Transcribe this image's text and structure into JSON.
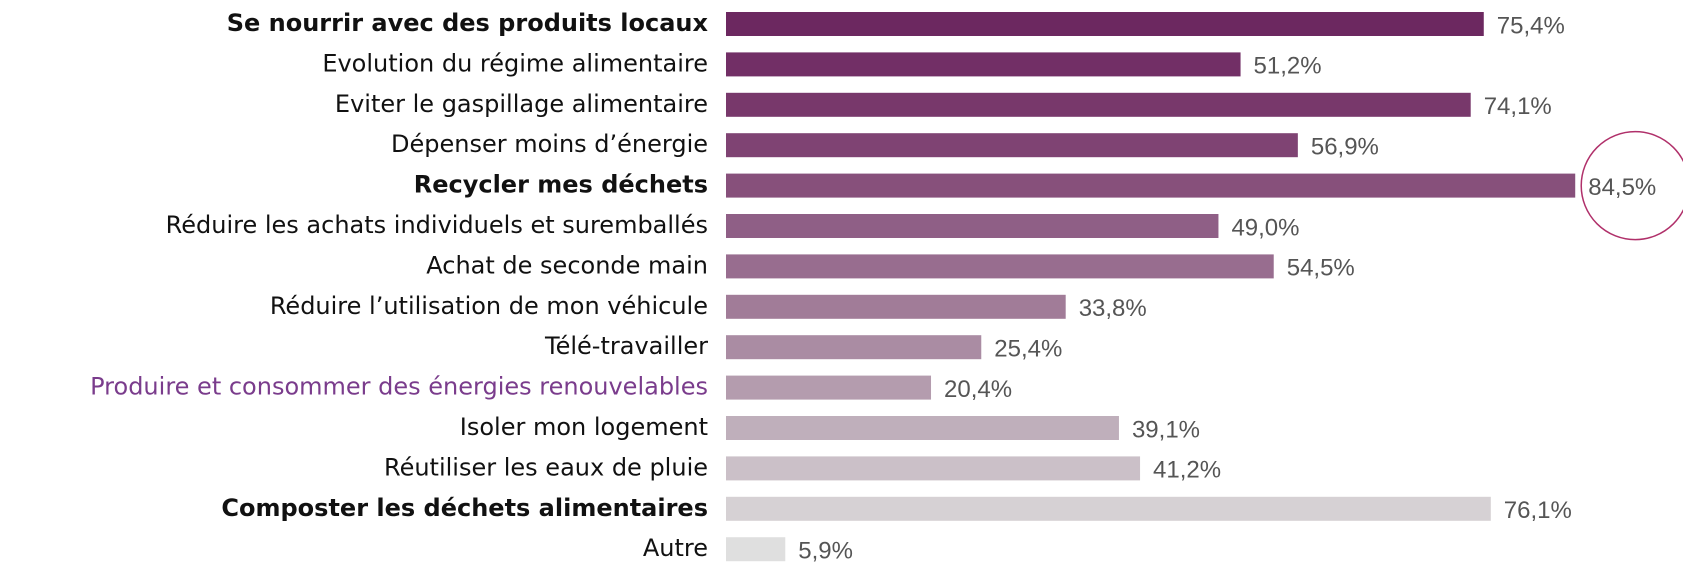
{
  "chart_data": {
    "type": "bar",
    "orientation": "horizontal",
    "categories": [
      "Se nourrir avec des produits locaux",
      "Evolution du régime alimentaire",
      "Eviter le gaspillage alimentaire",
      "Dépenser moins d’énergie",
      "Recycler mes déchets",
      "Réduire les achats individuels et suremballés",
      "Achat de seconde main",
      "Réduire l’utilisation de mon véhicule",
      "Télé-travailler",
      "Produire et consommer des énergies renouvelables",
      "Isoler mon logement",
      "Réutiliser les eaux de pluie",
      "Composter les déchets alimentaires",
      "Autre"
    ],
    "values": [
      75.4,
      51.2,
      74.1,
      56.9,
      84.5,
      49.0,
      54.5,
      33.8,
      25.4,
      20.4,
      39.1,
      41.2,
      76.1,
      5.9
    ],
    "value_labels": [
      "75,4%",
      "51,2%",
      "74,1%",
      "56,9%",
      "84,5%",
      "49,0%",
      "54,5%",
      "33,8%",
      "25,4%",
      "20,4%",
      "39,1%",
      "41,2%",
      "76,1%",
      "5,9%"
    ],
    "colors": [
      "#6c2860",
      "#722f66",
      "#78386b",
      "#7f4373",
      "#87507b",
      "#8f5f86",
      "#986d8f",
      "#a17c98",
      "#aa8ca3",
      "#b49cae",
      "#bfafbb",
      "#cbc0c8",
      "#d6d1d4",
      "#dfdfdf"
    ],
    "label_weights": [
      "bold",
      "normal",
      "normal",
      "normal",
      "bold",
      "normal",
      "normal",
      "normal",
      "normal",
      "normal",
      "normal",
      "normal",
      "bold",
      "normal"
    ],
    "label_colors": [
      "#111111",
      "#111111",
      "#111111",
      "#111111",
      "#111111",
      "#111111",
      "#111111",
      "#111111",
      "#111111",
      "#7a3c8c",
      "#111111",
      "#111111",
      "#111111",
      "#111111"
    ],
    "highlight_index": 4,
    "xlim": [
      0,
      100
    ]
  }
}
